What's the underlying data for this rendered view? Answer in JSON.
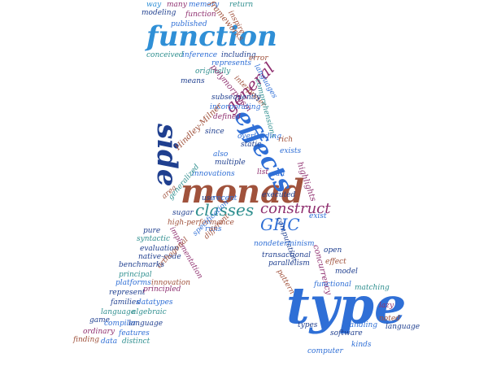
{
  "wordcloud": {
    "words": [
      {
        "text": "type",
        "color": "#2f6fd6",
        "weight": 10
      },
      {
        "text": "monad",
        "color": "#a0523c",
        "weight": 9
      },
      {
        "text": "function",
        "color": "#2f8fd6",
        "weight": 7
      },
      {
        "text": "side",
        "color": "#1f3f8f",
        "weight": 6
      },
      {
        "text": "effects",
        "color": "#2f6fd6",
        "weight": 6
      },
      {
        "text": "general",
        "color": "#8f2f6f",
        "weight": 5
      },
      {
        "text": "classes",
        "color": "#2f8f8f",
        "weight": 4
      },
      {
        "text": "construct",
        "color": "#8f2f6f",
        "weight": 4
      },
      {
        "text": "GHC",
        "color": "#2f6fd6",
        "weight": 4
      },
      {
        "text": "way",
        "color": "#2f8fd6",
        "weight": 1
      },
      {
        "text": "many",
        "color": "#8f2f6f",
        "weight": 1
      },
      {
        "text": "memory",
        "color": "#2f6fd6",
        "weight": 1
      },
      {
        "text": "frameworks",
        "color": "#a0523c",
        "weight": 1
      },
      {
        "text": "return",
        "color": "#2f8f8f",
        "weight": 1
      },
      {
        "text": "modeling",
        "color": "#1f3f8f",
        "weight": 1
      },
      {
        "text": "function",
        "color": "#8f2f6f",
        "weight": 1
      },
      {
        "text": "inspire",
        "color": "#a0523c",
        "weight": 1
      },
      {
        "text": "published",
        "color": "#2f6fd6",
        "weight": 1
      },
      {
        "text": "conceived",
        "color": "#2f8f8f",
        "weight": 1
      },
      {
        "text": "inference",
        "color": "#2f6fd6",
        "weight": 1
      },
      {
        "text": "including",
        "color": "#1f3f8f",
        "weight": 1
      },
      {
        "text": "represents",
        "color": "#2f6fd6",
        "weight": 1
      },
      {
        "text": "error",
        "color": "#a0523c",
        "weight": 1
      },
      {
        "text": "originally",
        "color": "#2f8f8f",
        "weight": 1
      },
      {
        "text": "polymorphism",
        "color": "#8f2f6f",
        "weight": 1
      },
      {
        "text": "languages",
        "color": "#2f6fd6",
        "weight": 1
      },
      {
        "text": "means",
        "color": "#1f3f8f",
        "weight": 1
      },
      {
        "text": "interpreter",
        "color": "#a0523c",
        "weight": 1
      },
      {
        "text": "comprehensions",
        "color": "#2f8f8f",
        "weight": 1
      },
      {
        "text": "subsequently",
        "color": "#1f3f8f",
        "weight": 1
      },
      {
        "text": "incorporating",
        "color": "#2f6fd6",
        "weight": 1
      },
      {
        "text": "defined",
        "color": "#8f2f6f",
        "weight": 1
      },
      {
        "text": "since",
        "color": "#1f3f8f",
        "weight": 1
      },
      {
        "text": "overloading",
        "color": "#2f6fd6",
        "weight": 1
      },
      {
        "text": "static",
        "color": "#1f3f8f",
        "weight": 1
      },
      {
        "text": "rich",
        "color": "#a0523c",
        "weight": 1
      },
      {
        "text": "exists",
        "color": "#2f6fd6",
        "weight": 1
      },
      {
        "text": "also",
        "color": "#2f6fd6",
        "weight": 1
      },
      {
        "text": "Hindley-Milner",
        "color": "#a0523c",
        "weight": 1
      },
      {
        "text": "multiple",
        "color": "#1f3f8f",
        "weight": 1
      },
      {
        "text": "list",
        "color": "#8f2f6f",
        "weight": 1
      },
      {
        "text": "can",
        "color": "#2f6fd6",
        "weight": 1
      },
      {
        "text": "highlights",
        "color": "#8f2f6f",
        "weight": 1
      },
      {
        "text": "innovations",
        "color": "#2f6fd6",
        "weight": 1
      },
      {
        "text": "area",
        "color": "#a0523c",
        "weight": 1
      },
      {
        "text": "use",
        "color": "#1f3f8f",
        "weight": 1
      },
      {
        "text": "recent",
        "color": "#2f6fd6",
        "weight": 1
      },
      {
        "text": "executed",
        "color": "#1f3f8f",
        "weight": 1
      },
      {
        "text": "generalized",
        "color": "#2f8f8f",
        "weight": 1
      },
      {
        "text": "sugar",
        "color": "#1f3f8f",
        "weight": 1
      },
      {
        "text": "exist",
        "color": "#2f6fd6",
        "weight": 1
      },
      {
        "text": "computation",
        "color": "#1f3f8f",
        "weight": 1
      },
      {
        "text": "high-performance",
        "color": "#a0523c",
        "weight": 1
      },
      {
        "text": "pure",
        "color": "#1f3f8f",
        "weight": 1
      },
      {
        "text": "runs",
        "color": "#2f6fd6",
        "weight": 1
      },
      {
        "text": "syntactic",
        "color": "#2f8f8f",
        "weight": 1
      },
      {
        "text": "implementation",
        "color": "#8f2f6f",
        "weight": 1
      },
      {
        "text": "specification",
        "color": "#2f6fd6",
        "weight": 1
      },
      {
        "text": "different",
        "color": "#a0523c",
        "weight": 1
      },
      {
        "text": "nondeterminism",
        "color": "#2f6fd6",
        "weight": 1
      },
      {
        "text": "evaluation",
        "color": "#1f3f8f",
        "weight": 1
      },
      {
        "text": "native-code",
        "color": "#1f3f8f",
        "weight": 1
      },
      {
        "text": "transactional",
        "color": "#1f3f8f",
        "weight": 1
      },
      {
        "text": "open",
        "color": "#1f3f8f",
        "weight": 1
      },
      {
        "text": "effect",
        "color": "#a0523c",
        "weight": 1
      },
      {
        "text": "orthogonal",
        "color": "#a0523c",
        "weight": 1
      },
      {
        "text": "parallelism",
        "color": "#1f3f8f",
        "weight": 1
      },
      {
        "text": "benchmarks",
        "color": "#1f3f8f",
        "weight": 1
      },
      {
        "text": "concurrency",
        "color": "#8f2f6f",
        "weight": 1
      },
      {
        "text": "model",
        "color": "#1f3f8f",
        "weight": 1
      },
      {
        "text": "principal",
        "color": "#2f8f8f",
        "weight": 1
      },
      {
        "text": "pattern",
        "color": "#a0523c",
        "weight": 1
      },
      {
        "text": "platforms",
        "color": "#2f6fd6",
        "weight": 1
      },
      {
        "text": "innovation",
        "color": "#a0523c",
        "weight": 1
      },
      {
        "text": "functional",
        "color": "#2f6fd6",
        "weight": 1
      },
      {
        "text": "represent",
        "color": "#1f3f8f",
        "weight": 1
      },
      {
        "text": "principled",
        "color": "#8f2f6f",
        "weight": 1
      },
      {
        "text": "matching",
        "color": "#2f8f8f",
        "weight": 1
      },
      {
        "text": "families",
        "color": "#1f3f8f",
        "weight": 1
      },
      {
        "text": "datatypes",
        "color": "#2f6fd6",
        "weight": 1
      },
      {
        "text": "language",
        "color": "#2f8f8f",
        "weight": 1
      },
      {
        "text": "algebraic",
        "color": "#2f8f8f",
        "weight": 1
      },
      {
        "text": "lazy",
        "color": "#8f2f6f",
        "weight": 1
      },
      {
        "text": "game",
        "color": "#1f3f8f",
        "weight": 1
      },
      {
        "text": "compiler",
        "color": "#2f6fd6",
        "weight": 1
      },
      {
        "text": "language",
        "color": "#1f3f8f",
        "weight": 1
      },
      {
        "text": "noted",
        "color": "#a0523c",
        "weight": 1
      },
      {
        "text": "handling",
        "color": "#2f6fd6",
        "weight": 1
      },
      {
        "text": "language",
        "color": "#1f3f8f",
        "weight": 1
      },
      {
        "text": "types",
        "color": "#1f3f8f",
        "weight": 1
      },
      {
        "text": "ordinary",
        "color": "#8f2f6f",
        "weight": 1
      },
      {
        "text": "features",
        "color": "#2f6fd6",
        "weight": 1
      },
      {
        "text": "software",
        "color": "#1f3f8f",
        "weight": 1
      },
      {
        "text": "finding",
        "color": "#a0523c",
        "weight": 1
      },
      {
        "text": "data",
        "color": "#2f6fd6",
        "weight": 1
      },
      {
        "text": "distinct",
        "color": "#2f8f8f",
        "weight": 1
      },
      {
        "text": "kinds",
        "color": "#2f6fd6",
        "weight": 1
      },
      {
        "text": "computer",
        "color": "#2f6fd6",
        "weight": 1
      }
    ]
  }
}
